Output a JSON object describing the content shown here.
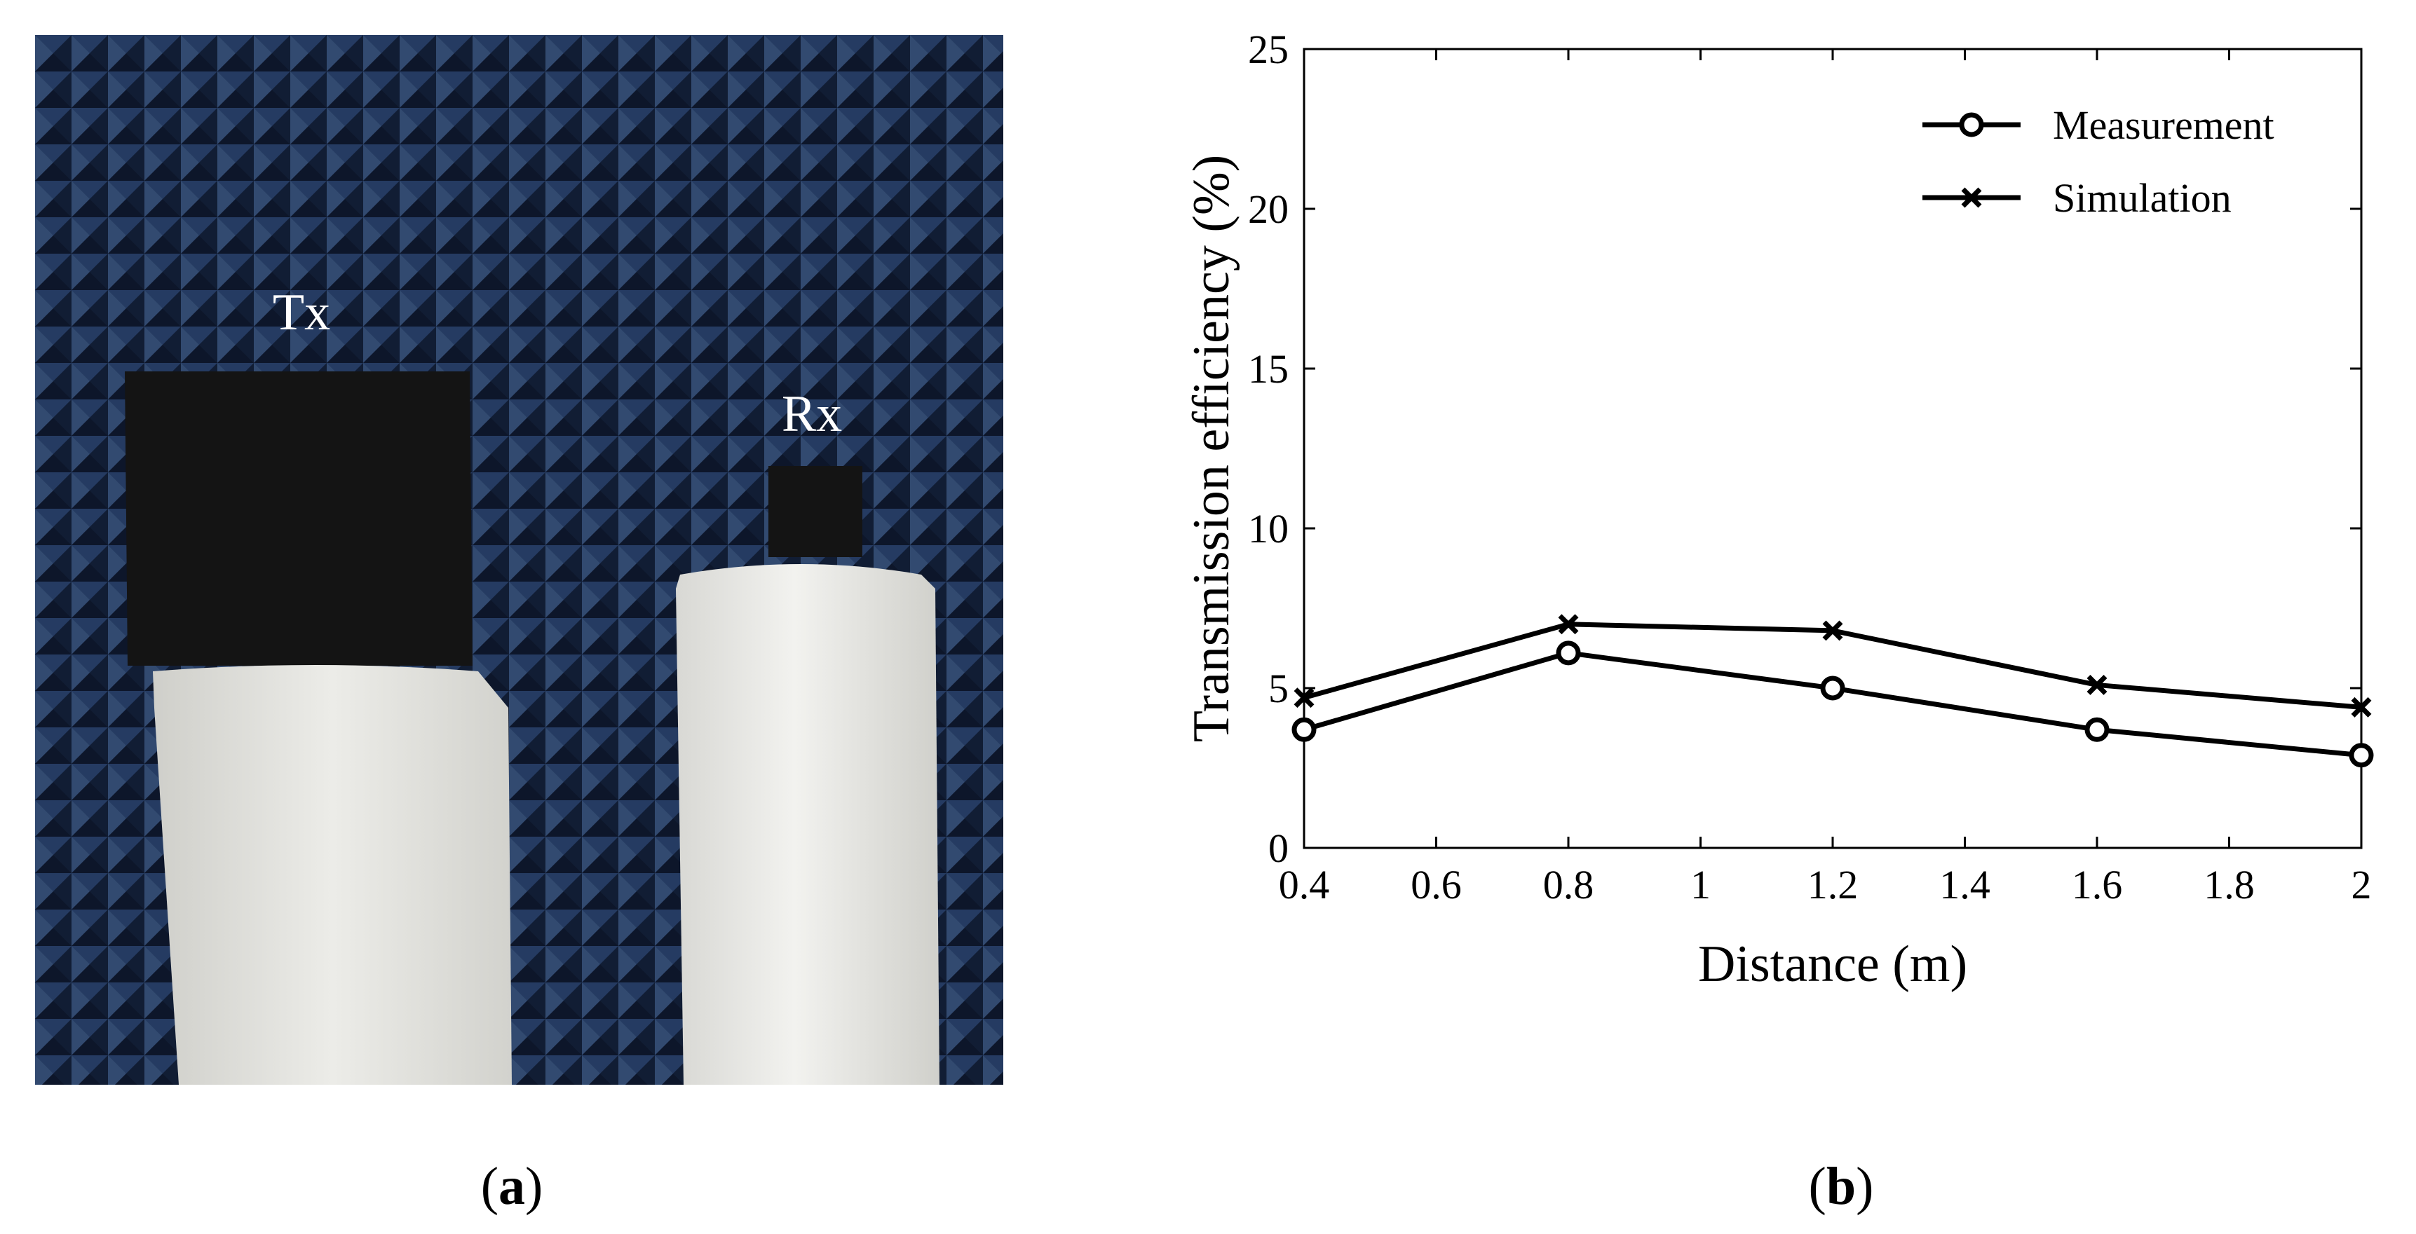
{
  "photo": {
    "tx_label": "Tx",
    "rx_label": "Rx",
    "colors": {
      "absorber": "#1d2f4f",
      "absorber_light": "#3a5580",
      "antenna": "#141414",
      "foam": "#e6e6e2"
    }
  },
  "captions": {
    "a": {
      "open": "(",
      "letter": "a",
      "close": ")"
    },
    "b": {
      "open": "(",
      "letter": "b",
      "close": ")"
    }
  },
  "chart_data": {
    "type": "line",
    "xlabel": "Distance (m)",
    "ylabel": "Transmission efficiency (%)",
    "xlim": [
      0.4,
      2
    ],
    "ylim": [
      0,
      25
    ],
    "xticks": [
      "0.4",
      "0.6",
      "0.8",
      "1",
      "1.2",
      "1.4",
      "1.6",
      "1.8",
      "2"
    ],
    "yticks": [
      "0",
      "5",
      "10",
      "15",
      "20",
      "25"
    ],
    "grid": false,
    "legend_position": "top-right",
    "x": [
      0.4,
      0.8,
      1.2,
      1.6,
      2.0
    ],
    "series": [
      {
        "name": "Measurement",
        "marker": "circle",
        "values": [
          3.7,
          6.1,
          5.0,
          3.7,
          2.9
        ]
      },
      {
        "name": "Simulation",
        "marker": "x",
        "values": [
          4.7,
          7.0,
          6.8,
          5.1,
          4.4
        ]
      }
    ]
  }
}
